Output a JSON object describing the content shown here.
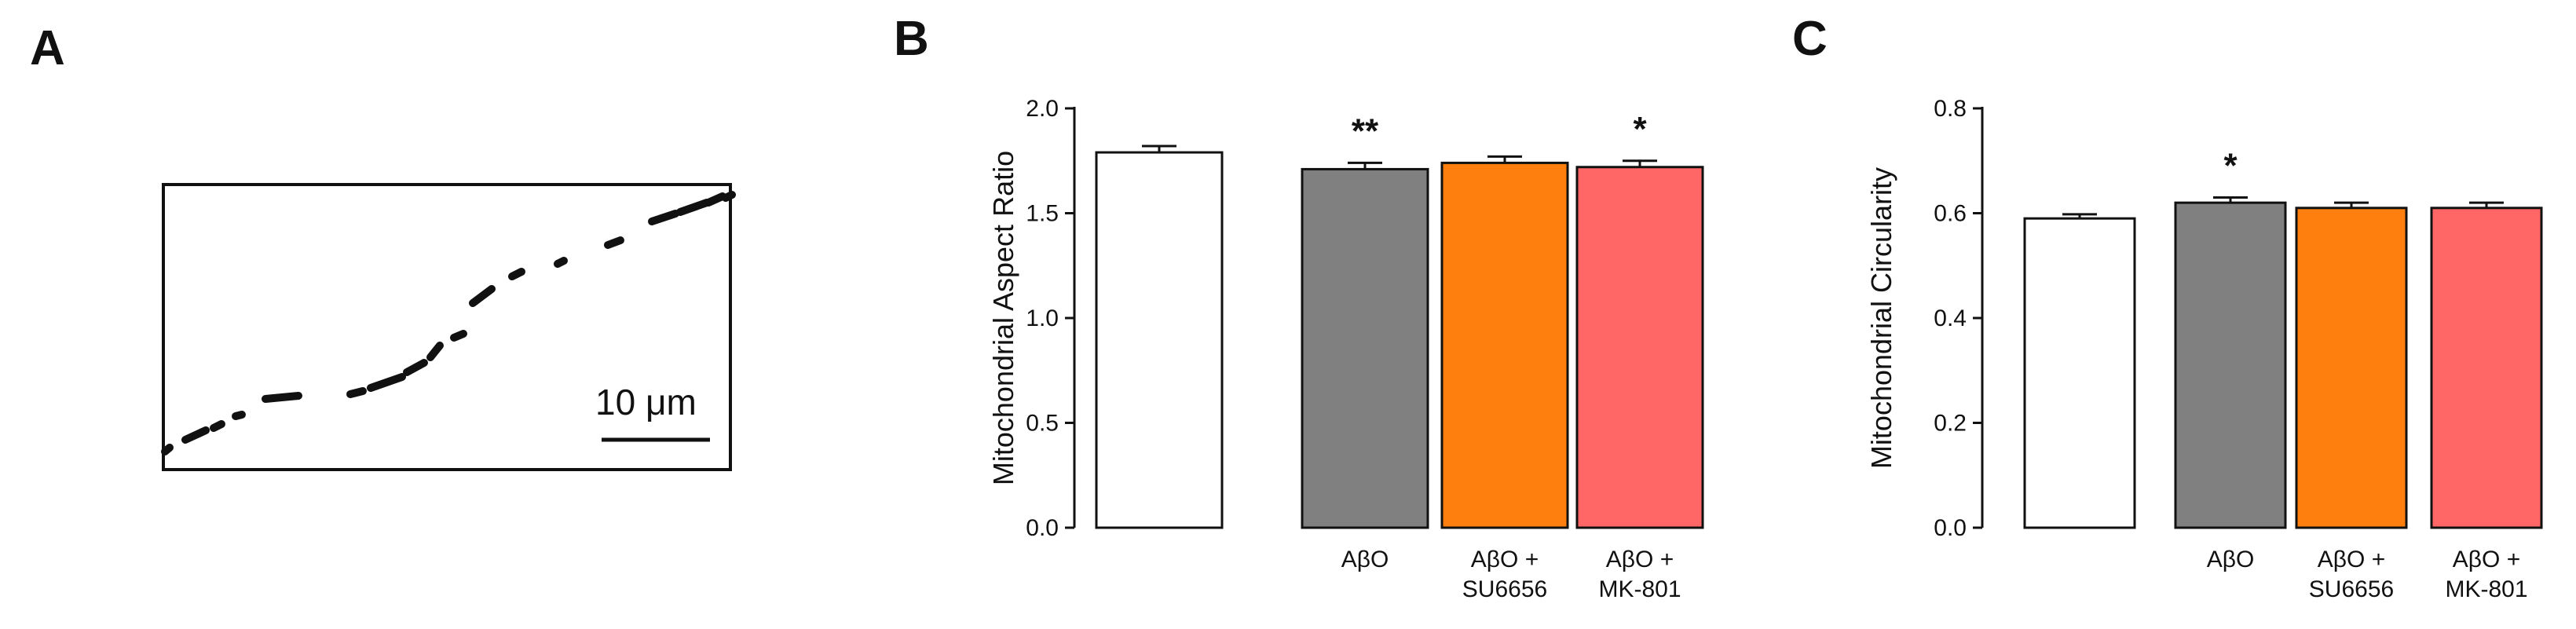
{
  "panels": {
    "a": {
      "letter": "A",
      "scale_bar_label": "10 μm"
    },
    "b": {
      "letter": "B"
    },
    "c": {
      "letter": "C"
    }
  },
  "chart_data": [
    {
      "type": "bar",
      "title": "",
      "xlabel": "",
      "ylabel": "Mitochondrial Aspect Ratio",
      "ylim": [
        0,
        2.0
      ],
      "yticks": [
        "0.0",
        "0.5",
        "1.0",
        "1.5",
        "2.0"
      ],
      "ytick_values": [
        0,
        0.5,
        1.0,
        1.5,
        2.0
      ],
      "categories": [
        [
          "",
          ""
        ],
        [
          "AβO",
          ""
        ],
        [
          "AβO +",
          "SU6656"
        ],
        [
          "AβO +",
          "MK-801"
        ]
      ],
      "values": [
        1.79,
        1.71,
        1.74,
        1.72
      ],
      "errors": [
        0.03,
        0.03,
        0.03,
        0.03
      ],
      "significance": [
        "",
        "**",
        "",
        "*"
      ],
      "colors": [
        "#ffffff",
        "#808080",
        "#ff7f0e",
        "#ff6666"
      ]
    },
    {
      "type": "bar",
      "title": "",
      "xlabel": "",
      "ylabel": "Mitochondrial Circularity",
      "ylim": [
        0,
        0.8
      ],
      "yticks": [
        "0.0",
        "0.2",
        "0.4",
        "0.6",
        "0.8"
      ],
      "ytick_values": [
        0,
        0.2,
        0.4,
        0.6,
        0.8
      ],
      "categories": [
        [
          "",
          ""
        ],
        [
          "AβO",
          ""
        ],
        [
          "AβO +",
          "SU6656"
        ],
        [
          "AβO +",
          "MK-801"
        ]
      ],
      "values": [
        0.59,
        0.62,
        0.61,
        0.61
      ],
      "errors": [
        0.008,
        0.01,
        0.01,
        0.01
      ],
      "significance": [
        "",
        "*",
        "",
        ""
      ],
      "colors": [
        "#ffffff",
        "#808080",
        "#ff7f0e",
        "#ff6666"
      ]
    }
  ]
}
